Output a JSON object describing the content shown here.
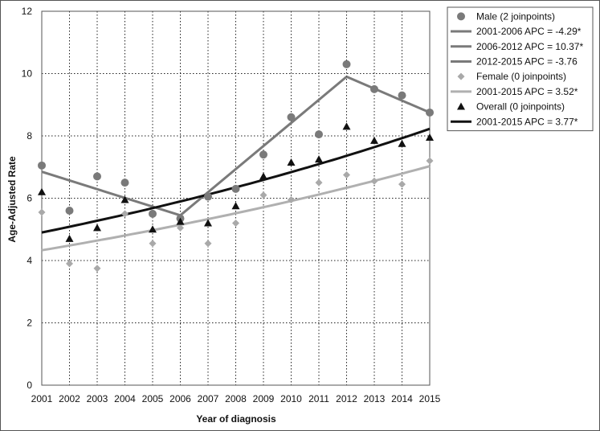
{
  "chart_data": {
    "type": "scatter",
    "title": "",
    "xlabel": "Year of diagnosis",
    "ylabel": "Age-Adjusted Rate",
    "xlim": [
      2001,
      2015
    ],
    "ylim": [
      0,
      12
    ],
    "x_ticks": [
      "2001",
      "2002",
      "2003",
      "2004",
      "2005",
      "2006",
      "2007",
      "2008",
      "2009",
      "2010",
      "2011",
      "2012",
      "2013",
      "2014",
      "2015"
    ],
    "y_ticks": [
      "0",
      "2",
      "4",
      "6",
      "8",
      "10",
      "12"
    ],
    "grid": "dotted",
    "legend_position": "top-right",
    "x": [
      2001,
      2002,
      2003,
      2004,
      2005,
      2006,
      2007,
      2008,
      2009,
      2010,
      2011,
      2012,
      2013,
      2014,
      2015
    ],
    "series": [
      {
        "name": "Male (2 joinpoints)",
        "kind": "points",
        "marker": "circle",
        "color": "#7a7a7a",
        "values": [
          7.05,
          5.6,
          6.7,
          6.5,
          5.5,
          5.35,
          6.05,
          6.3,
          7.4,
          8.6,
          8.05,
          10.3,
          9.5,
          9.3,
          8.75
        ]
      },
      {
        "name": "2001-2006 APC = -4.29*",
        "kind": "line",
        "color": "#7a7a7a",
        "points": [
          [
            2001,
            6.85
          ],
          [
            2006,
            5.45
          ]
        ]
      },
      {
        "name": "2006-2012 APC = 10.37*",
        "kind": "line",
        "color": "#7a7a7a",
        "points": [
          [
            2006,
            5.45
          ],
          [
            2012,
            9.9
          ]
        ]
      },
      {
        "name": "2012-2015 APC = -3.76",
        "kind": "line",
        "color": "#7a7a7a",
        "points": [
          [
            2012,
            9.9
          ],
          [
            2015,
            8.75
          ]
        ]
      },
      {
        "name": "Female (0 joinpoints)",
        "kind": "points",
        "marker": "diamond",
        "color": "#a9a9a9",
        "values": [
          5.55,
          3.9,
          3.75,
          5.5,
          4.55,
          5.05,
          4.55,
          5.2,
          6.1,
          5.95,
          6.5,
          6.75,
          6.55,
          6.45,
          7.2
        ]
      },
      {
        "name": "2001-2015 APC = 3.52*",
        "kind": "curve",
        "color": "#b0b0b0",
        "start": 4.33,
        "apc": 3.52
      },
      {
        "name": "Overall (0 joinpoints)",
        "kind": "points",
        "marker": "triangle",
        "color": "#111111",
        "values": [
          6.2,
          4.7,
          5.05,
          5.95,
          5.0,
          5.25,
          5.2,
          5.75,
          6.7,
          7.15,
          7.25,
          8.3,
          7.85,
          7.75,
          7.95
        ]
      },
      {
        "name": "2001-2015 APC = 3.77*",
        "kind": "curve",
        "color": "#111111",
        "start": 4.9,
        "apc": 3.77
      }
    ]
  }
}
